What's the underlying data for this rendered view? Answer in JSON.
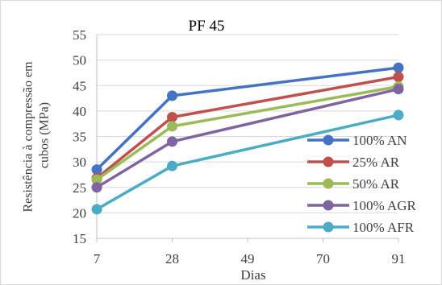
{
  "chart_data": {
    "type": "line",
    "title": "PF 45",
    "xlabel": "Dias",
    "ylabel": "Resistência à compressão em cubos (MPa)",
    "x_ticks": [
      7,
      28,
      49,
      70,
      91
    ],
    "y_ticks": [
      15,
      20,
      25,
      30,
      35,
      40,
      45,
      50,
      55
    ],
    "xlim": [
      7,
      91
    ],
    "ylim": [
      15,
      55
    ],
    "grid": "horizontal",
    "legend_position": "right",
    "x": [
      7,
      28,
      91
    ],
    "series": [
      {
        "name": "100% AN",
        "color": "#4472C4",
        "values": [
          28.5,
          43.0,
          48.5
        ]
      },
      {
        "name": "25% AR",
        "color": "#C0504D",
        "values": [
          26.8,
          38.8,
          46.7
        ]
      },
      {
        "name": "50% AR",
        "color": "#9BBB59",
        "values": [
          26.5,
          37.0,
          44.8
        ]
      },
      {
        "name": "100% AGR",
        "color": "#8064A2",
        "values": [
          25.0,
          34.0,
          44.3
        ]
      },
      {
        "name": "100% AFR",
        "color": "#4BACC6",
        "values": [
          20.7,
          29.2,
          39.2
        ]
      }
    ]
  }
}
